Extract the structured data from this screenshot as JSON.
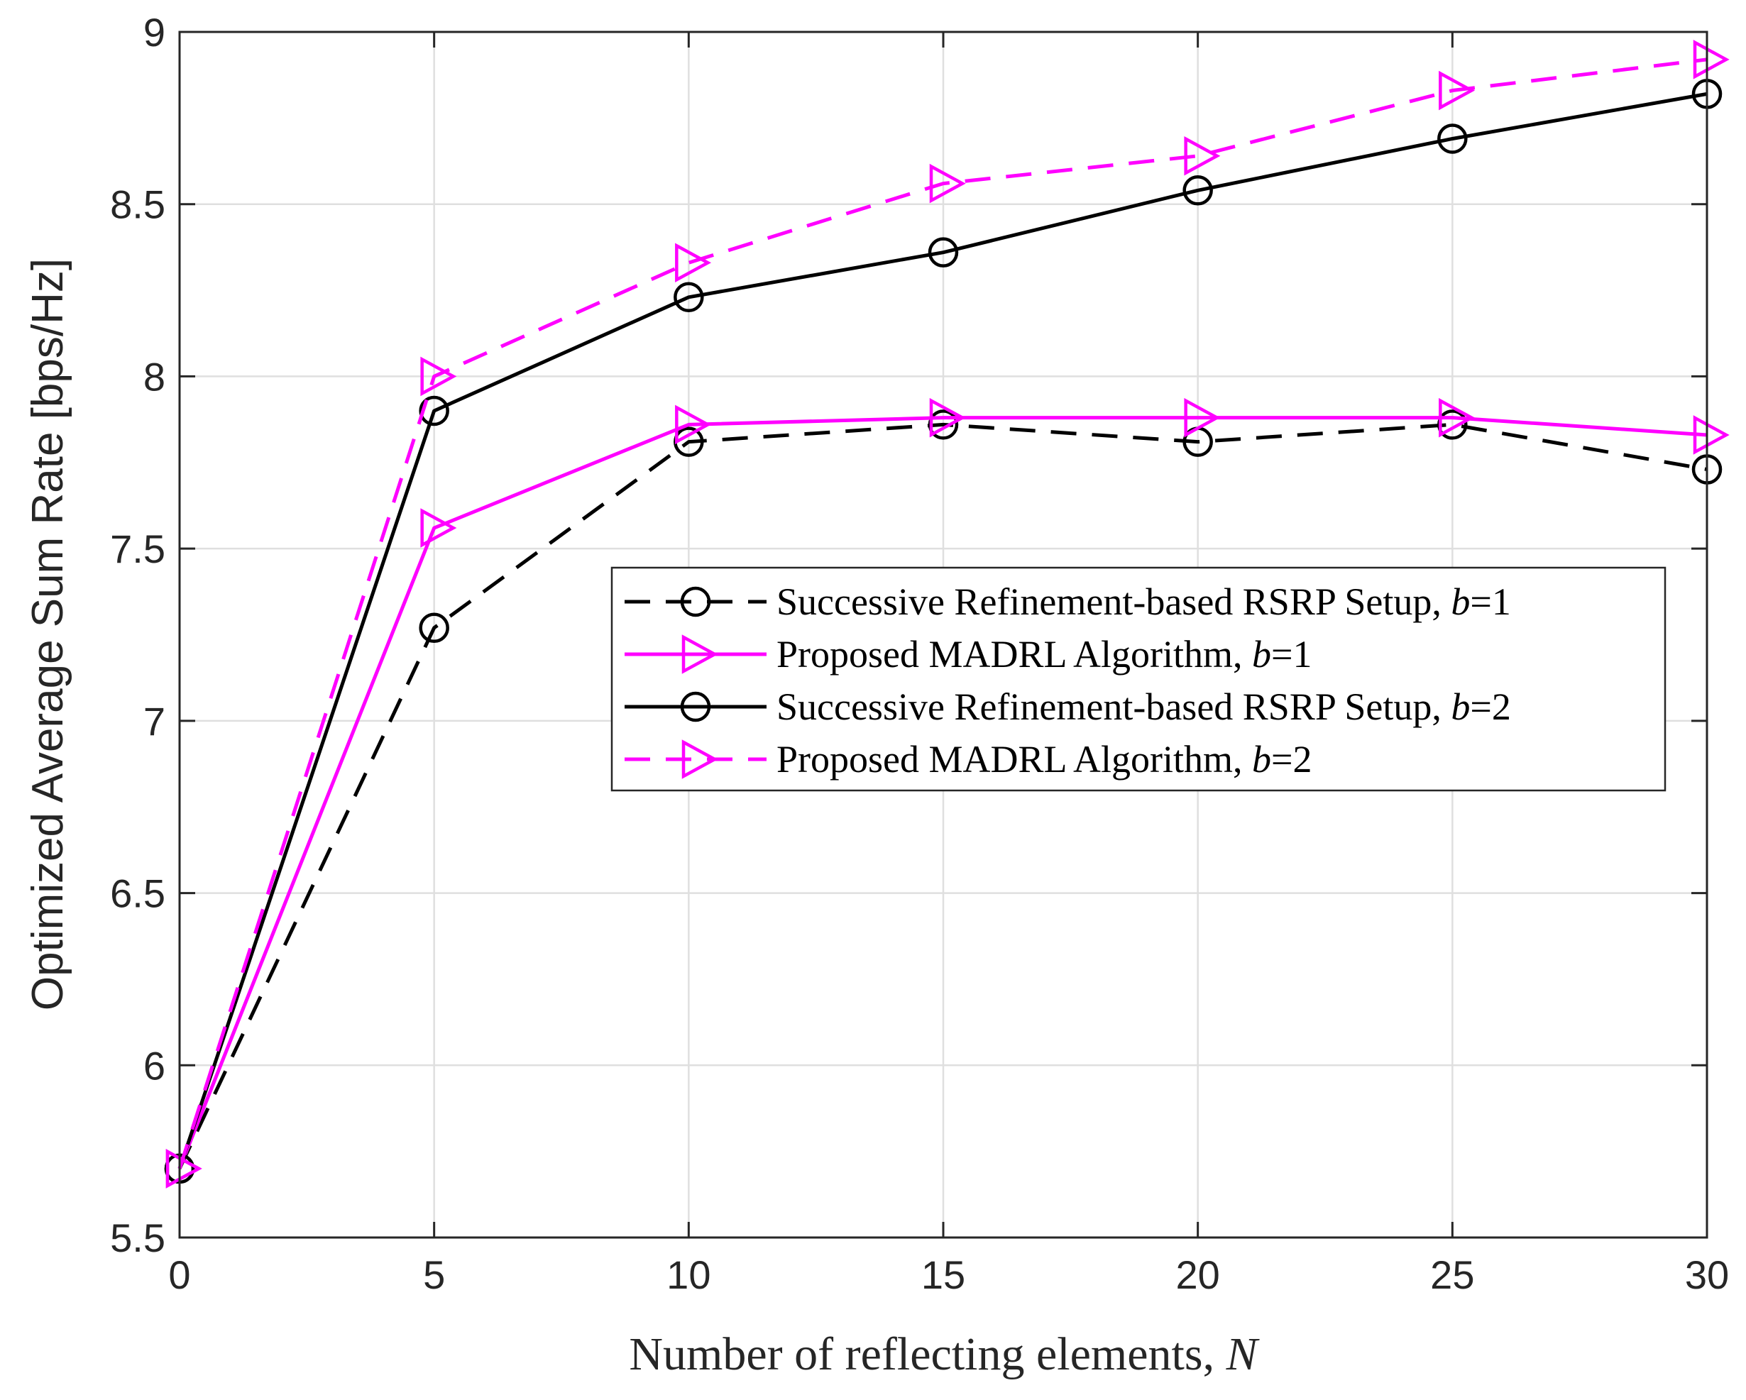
{
  "chart_data": {
    "type": "line",
    "title": "",
    "xlabel": "Number of reflecting elements, ",
    "xlabel_var": "N",
    "ylabel": "Optimized Average Sum Rate [bps/Hz]",
    "xlim": [
      0,
      30
    ],
    "ylim": [
      5.5,
      9
    ],
    "xticks": [
      0,
      5,
      10,
      15,
      20,
      25,
      30
    ],
    "xtick_labels": [
      "0",
      "5",
      "10",
      "15",
      "20",
      "25",
      "30"
    ],
    "yticks": [
      5.5,
      6,
      6.5,
      7,
      7.5,
      8,
      8.5,
      9
    ],
    "ytick_labels": [
      "5.5",
      "6",
      "6.5",
      "7",
      "7.5",
      "8",
      "8.5",
      "9"
    ],
    "grid": true,
    "legend_position": "center-right",
    "x": [
      0,
      5,
      10,
      15,
      20,
      25,
      30
    ],
    "series": [
      {
        "name": "Successive Refinement-based RSRP Setup, ",
        "var": "b",
        "suffix": "=1",
        "color": "#000000",
        "dash": "dashed",
        "marker": "circle",
        "values": [
          5.7,
          7.27,
          7.81,
          7.86,
          7.81,
          7.86,
          7.73
        ]
      },
      {
        "name": "Proposed MADRL Algorithm, ",
        "var": "b",
        "suffix": "=1",
        "color": "#ff00ff",
        "dash": "solid",
        "marker": "triangle-right",
        "values": [
          5.7,
          7.56,
          7.86,
          7.88,
          7.88,
          7.88,
          7.83
        ]
      },
      {
        "name": "Successive Refinement-based RSRP Setup, ",
        "var": "b",
        "suffix": "=2",
        "color": "#000000",
        "dash": "solid",
        "marker": "circle",
        "values": [
          5.7,
          7.9,
          8.23,
          8.36,
          8.54,
          8.69,
          8.82
        ]
      },
      {
        "name": "Proposed MADRL Algorithm, ",
        "var": "b",
        "suffix": "=2",
        "color": "#ff00ff",
        "dash": "dashed",
        "marker": "triangle-right",
        "values": [
          5.7,
          8.0,
          8.33,
          8.56,
          8.64,
          8.83,
          8.92
        ]
      }
    ]
  }
}
